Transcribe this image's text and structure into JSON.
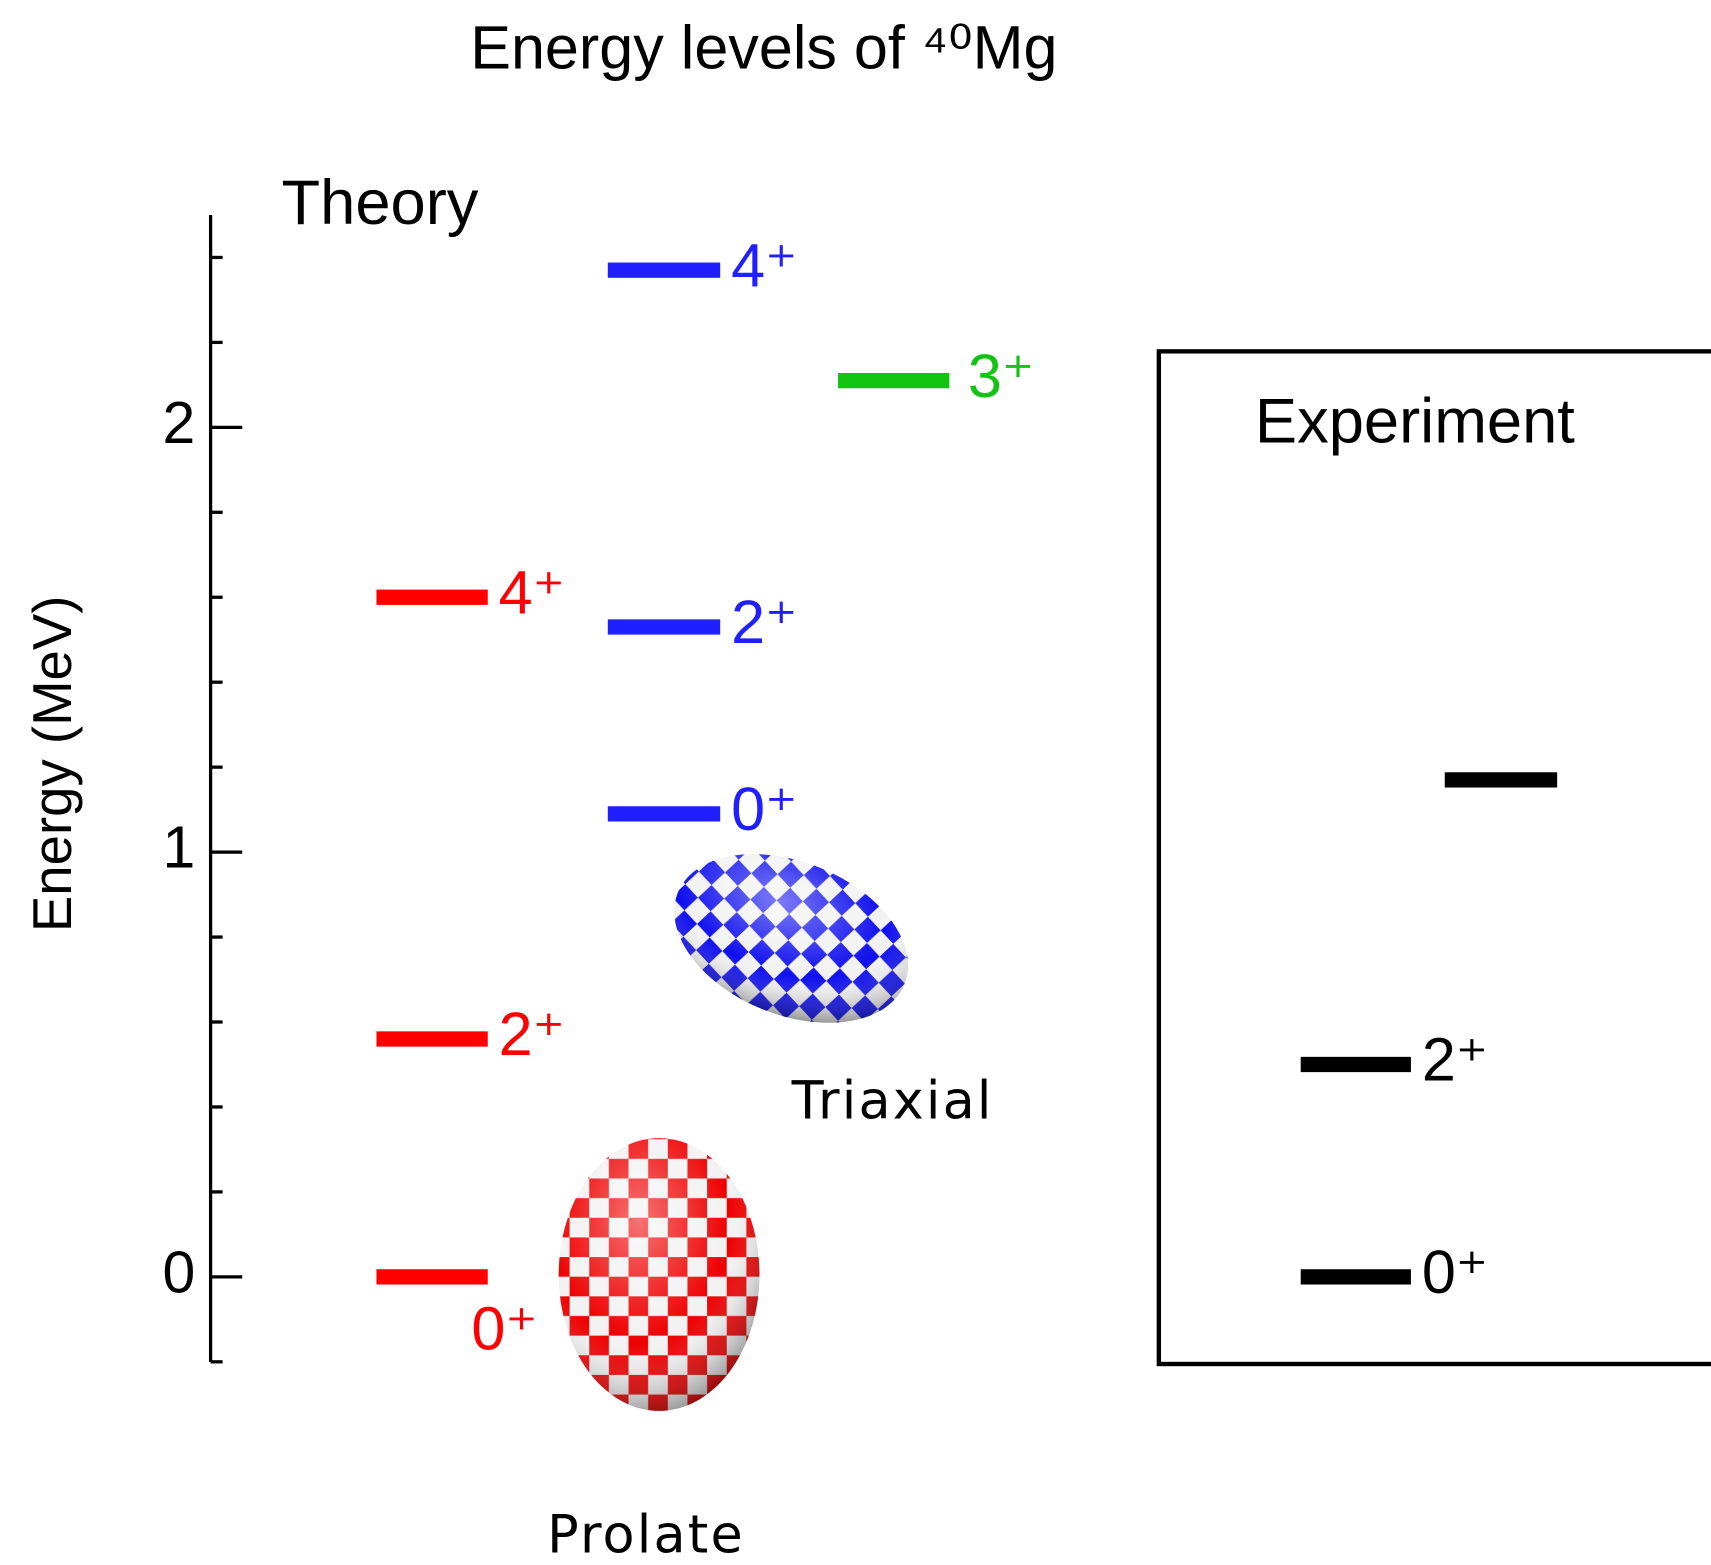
{
  "chart_data": {
    "type": "level",
    "title": "Energy levels of ⁴⁰Mg",
    "ylabel": "Energy (MeV)",
    "ylim": [
      -0.2,
      2.5
    ],
    "yticks": [
      0,
      1,
      2
    ],
    "yminor": [
      -0.2,
      0.2,
      0.4,
      0.6,
      0.8,
      1.2,
      1.4,
      1.6,
      1.8,
      2.2,
      2.4
    ],
    "theory_label": "Theory",
    "experiment_label": "Experiment",
    "series": [
      {
        "name": "Prolate",
        "color": "#ff0000",
        "values": [
          0,
          0.56,
          1.6
        ],
        "labels": [
          "0⁺",
          "2⁺",
          "4⁺"
        ]
      },
      {
        "name": "Triaxial",
        "color": "#1f1fff",
        "values": [
          1.09,
          1.53,
          2.37
        ],
        "labels": [
          "0⁺",
          "2⁺",
          "4⁺"
        ]
      },
      {
        "color": "#11c411",
        "values": [
          2.11
        ],
        "labels": [
          "3⁺"
        ]
      },
      {
        "color": "#000000",
        "values": [
          0,
          0.5,
          1.17
        ],
        "labels": [
          "0⁺",
          "2⁺",
          null
        ]
      }
    ]
  }
}
